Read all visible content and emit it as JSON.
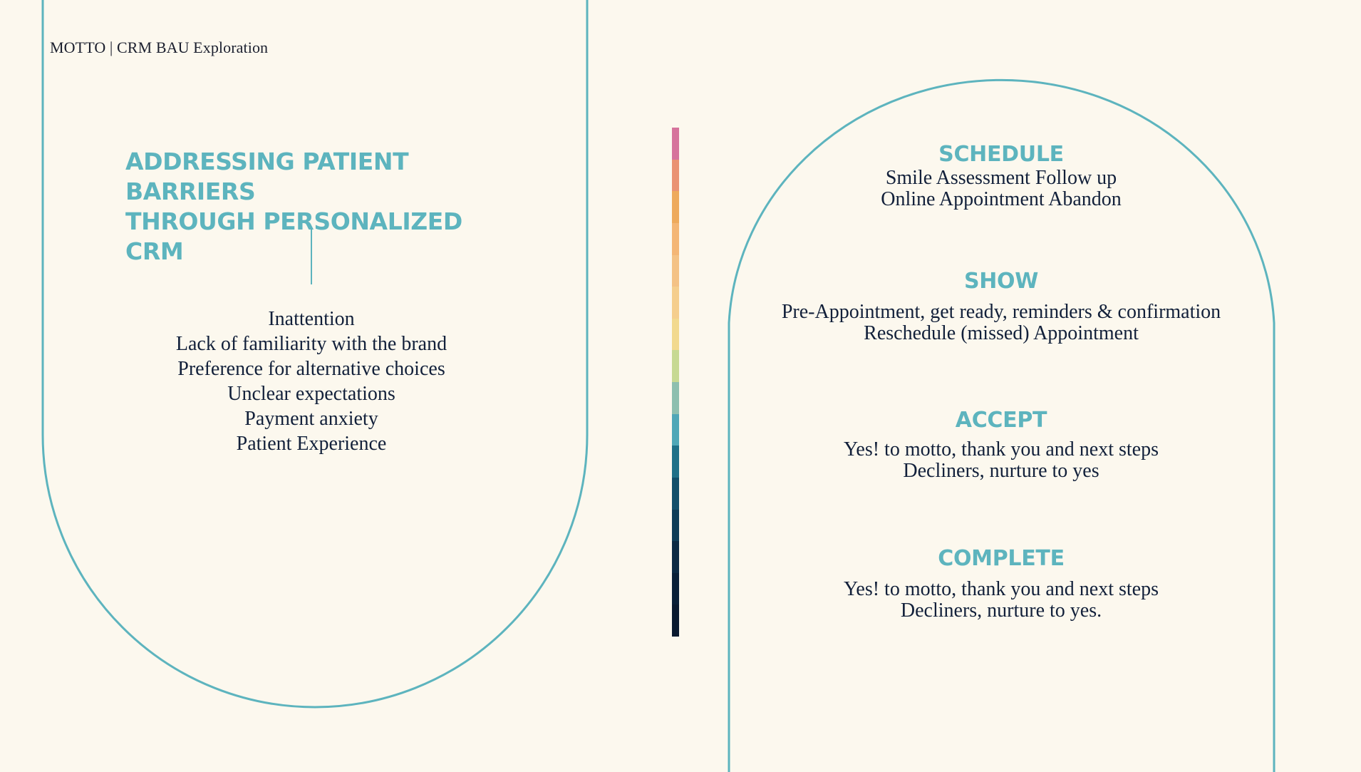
{
  "header": {
    "text": "MOTTO | CRM BAU Exploration"
  },
  "title": {
    "line1": "ADDRESSING PATIENT BARRIERS",
    "line2": "THROUGH PERSONALIZED CRM"
  },
  "barriers": [
    "Inattention",
    "Lack of familiarity with the brand",
    "Preference for alternative choices",
    "Unclear expectations",
    "Payment anxiety",
    "Patient Experience"
  ],
  "colors": {
    "background": "#fcf8ee",
    "accent": "#5db4be",
    "text": "#12203a",
    "gradient": [
      "#d6739c",
      "#ea9272",
      "#eeaa5c",
      "#f4b675",
      "#f4c285",
      "#f5ce8d",
      "#f2d98e",
      "#c7d993",
      "#8dbfaf",
      "#4fa7b7",
      "#1f7088",
      "#124f6a",
      "#0f3d58",
      "#0c2a44",
      "#0a2038",
      "#0a1a30"
    ]
  },
  "stages": [
    {
      "title": "SCHEDULE",
      "lines": [
        "Smile Assessment Follow up",
        "Online Appointment Abandon"
      ]
    },
    {
      "title": "SHOW",
      "lines": [
        "Pre-Appointment, get ready, reminders & confirmation",
        "Reschedule (missed) Appointment"
      ]
    },
    {
      "title": "ACCEPT",
      "lines": [
        "Yes! to motto, thank you and next steps",
        "Decliners, nurture to yes"
      ]
    },
    {
      "title": "COMPLETE",
      "lines": [
        "Yes! to motto, thank you and next steps",
        "Decliners, nurture to yes."
      ]
    }
  ]
}
